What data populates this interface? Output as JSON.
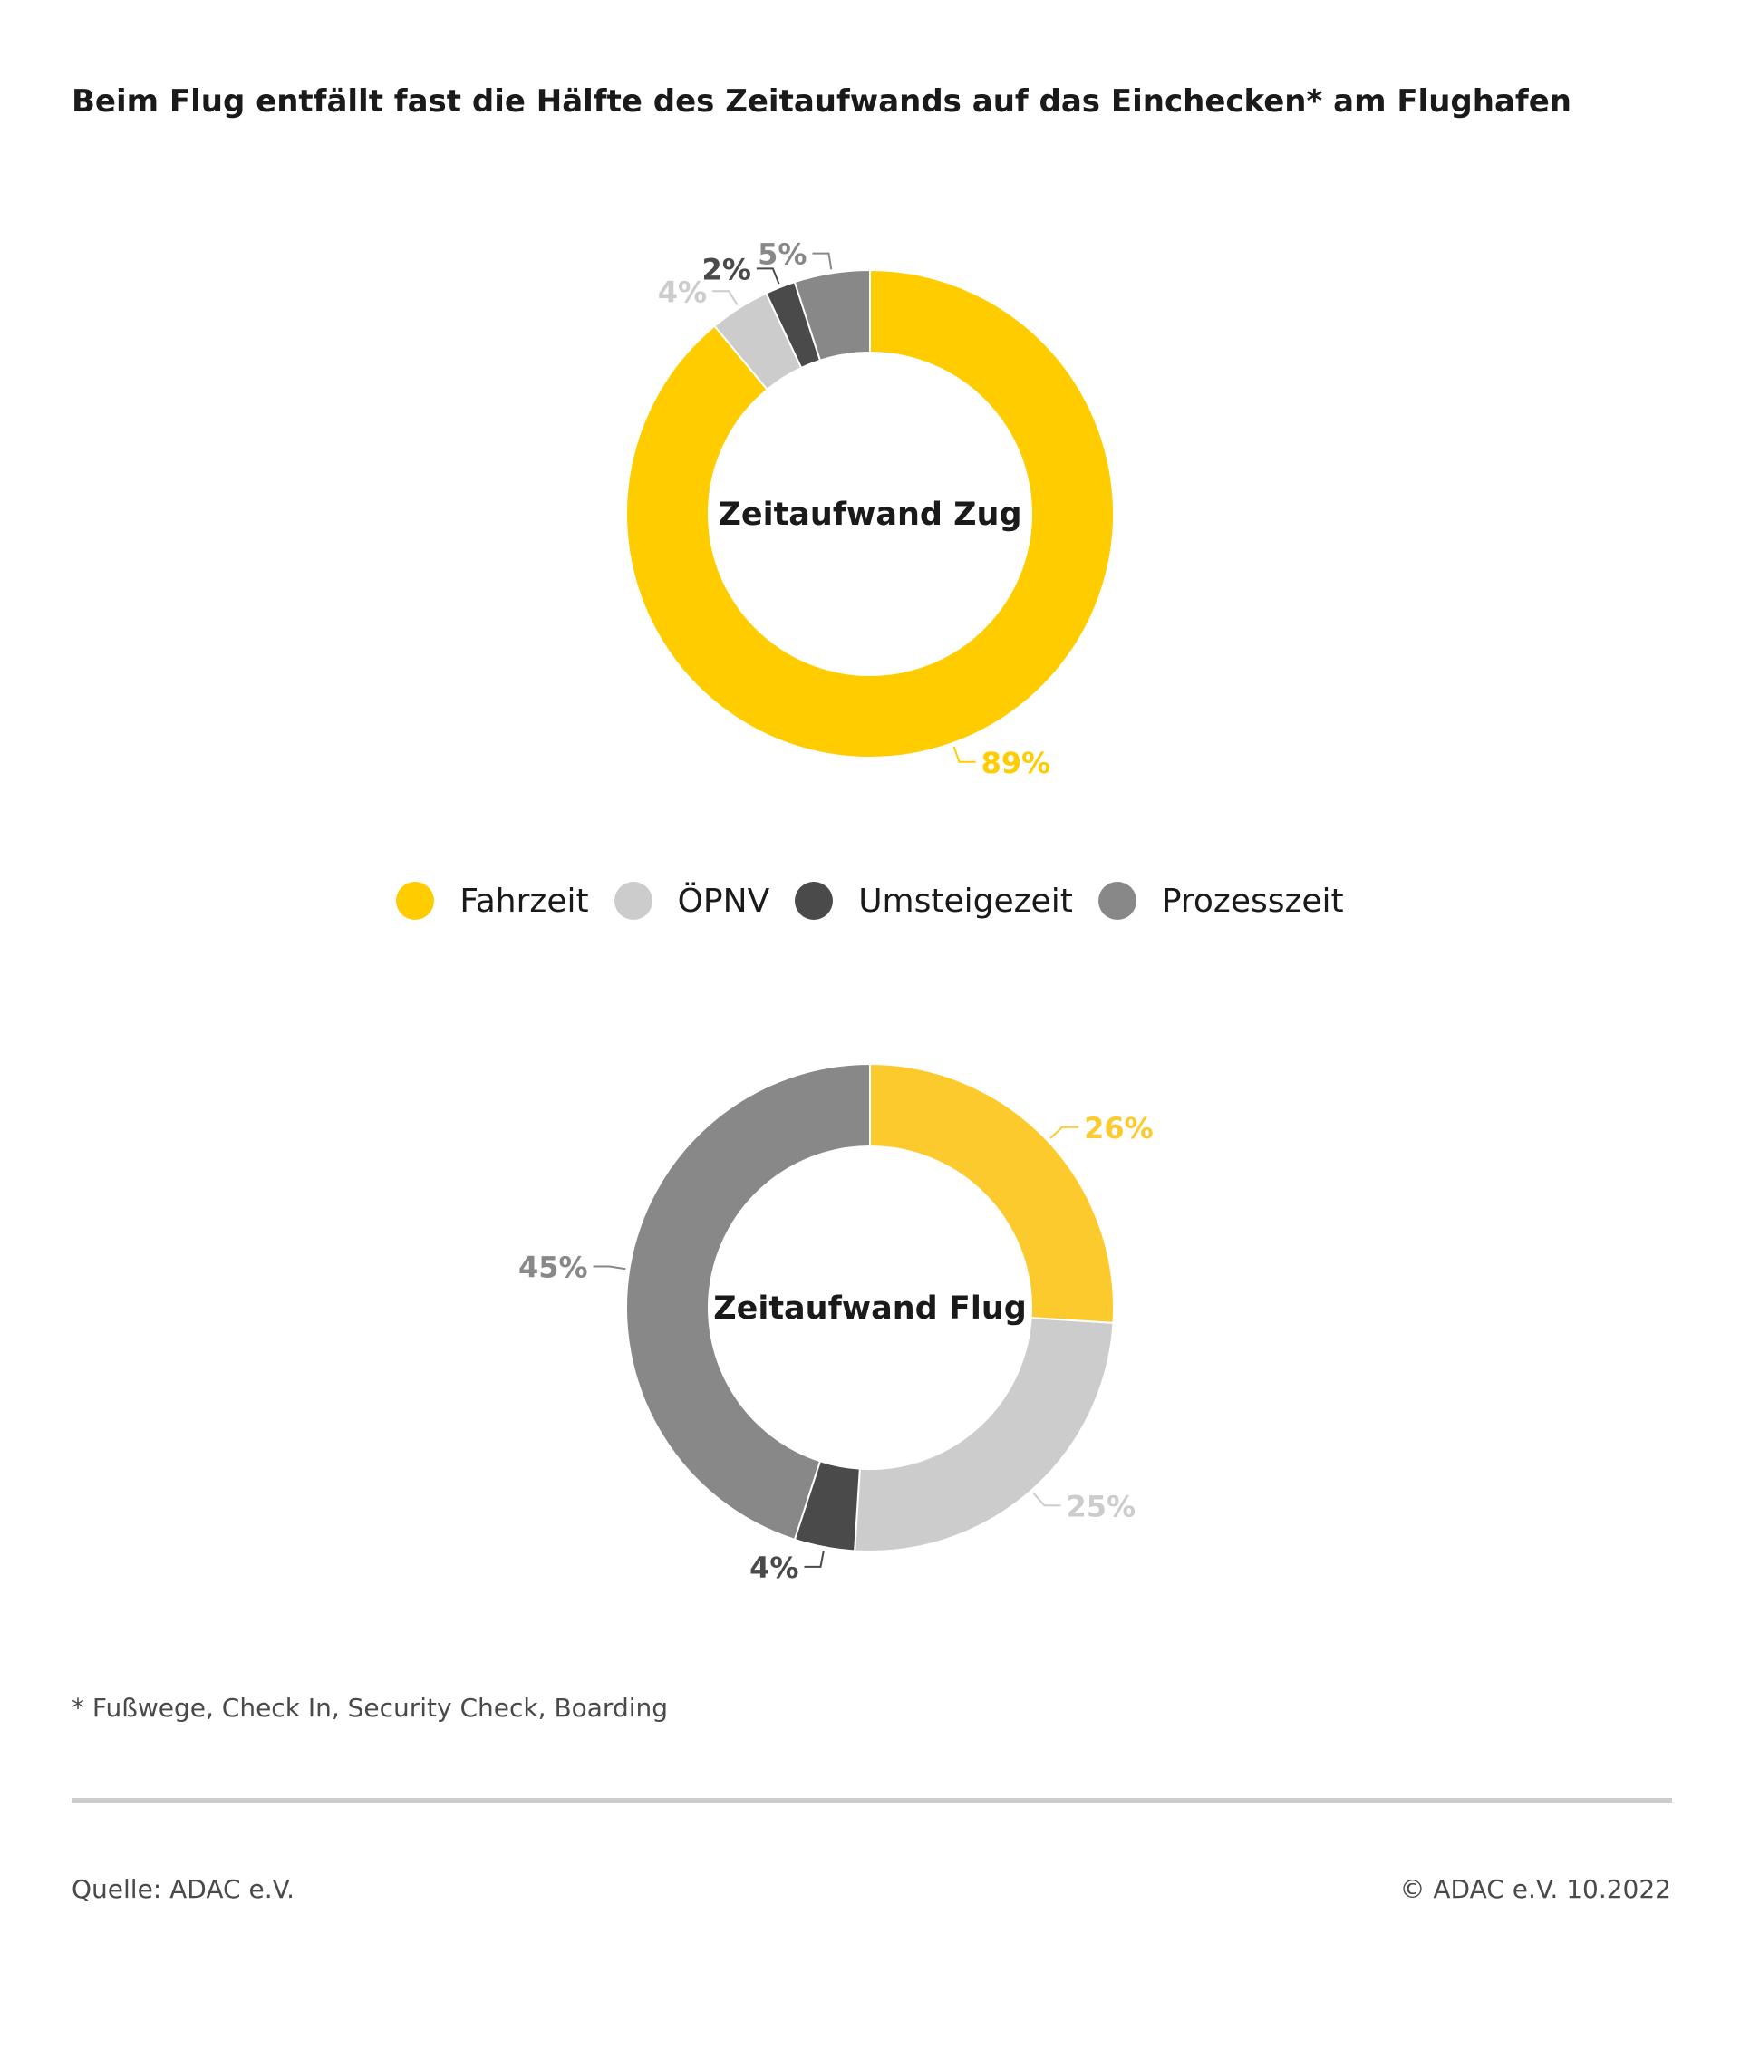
{
  "title": "Beim Flug entfällt fast die Hälfte des Zeitaufwands auf das Einchecken* am Flughafen",
  "footnote": "* Fußwege, Check In, Security Check, Boarding",
  "source": "Quelle: ADAC e.V.",
  "copyright": "© ADAC e.V. 10.2022",
  "legend": [
    {
      "label": "Fahrzeit",
      "color": "#FFCC00"
    },
    {
      "label": "ÖPNV",
      "color": "#CCCCCC"
    },
    {
      "label": "Umsteigezeit",
      "color": "#4A4A4A"
    },
    {
      "label": "Prozesszeit",
      "color": "#888888"
    }
  ],
  "chart_data": [
    {
      "type": "pie",
      "title": "Zeitaufwand Zug",
      "categories": [
        "Fahrzeit",
        "ÖPNV",
        "Umsteigezeit",
        "Prozesszeit"
      ],
      "values": [
        89,
        4,
        2,
        5
      ],
      "labels": [
        "89%",
        "4%",
        "2%",
        "5%"
      ],
      "colors": [
        "#FFCC00",
        "#CCCCCC",
        "#4A4A4A",
        "#888888"
      ],
      "label_colors": [
        "#FFCC00",
        "#CCCCCC",
        "#4A4A4A",
        "#888888"
      ]
    },
    {
      "type": "pie",
      "title": "Zeitaufwand Flug",
      "categories": [
        "Fahrzeit",
        "ÖPNV",
        "Umsteigezeit",
        "Prozesszeit"
      ],
      "values": [
        26,
        25,
        4,
        45
      ],
      "labels": [
        "26%",
        "25%",
        "4%",
        "45%"
      ],
      "colors": [
        "#FDCA2E",
        "#CCCCCC",
        "#4A4A4A",
        "#888888"
      ],
      "label_colors": [
        "#FDCA2E",
        "#CCCCCC",
        "#4A4A4A",
        "#888888"
      ]
    }
  ]
}
